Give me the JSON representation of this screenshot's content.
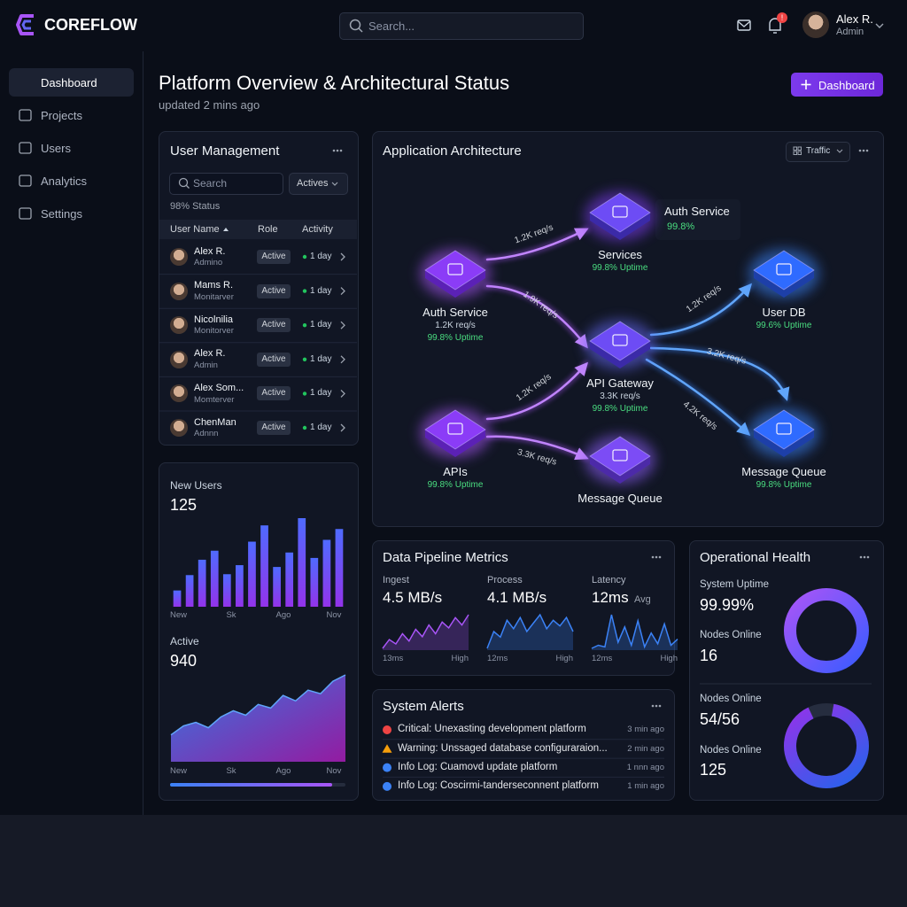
{
  "header": {
    "brand": "COREFLOW",
    "search_placeholder": "Search...",
    "notification_badge": "!",
    "user": {
      "name": "Alex R.",
      "role": "Admin"
    }
  },
  "sidebar": {
    "items": [
      "Dashboard",
      "Projects",
      "Users",
      "Analytics",
      "Settings"
    ],
    "active": 0
  },
  "page": {
    "title": "Platform Overview & Architectural Status",
    "subtitle": "updated 2 mins ago",
    "action": "Dashboard"
  },
  "user_management": {
    "title": "User Management",
    "search_placeholder": "Search",
    "filter": "Actives",
    "status": "98% Status",
    "columns": [
      "User Name",
      "Role",
      "Activity"
    ],
    "rows": [
      {
        "name": "Alex R.",
        "role": "Admino",
        "status": "Active",
        "activity": "1 day"
      },
      {
        "name": "Mams R.",
        "role": "Monitarver",
        "status": "Active",
        "activity": "1 day"
      },
      {
        "name": "Nicolnilia",
        "role": "Monitorver",
        "status": "Active",
        "activity": "1 day"
      },
      {
        "name": "Alex R.",
        "role": "Admin",
        "status": "Active",
        "activity": "1 day"
      },
      {
        "name": "Alex Som...",
        "role": "Momterver",
        "status": "Active",
        "activity": "1 day"
      },
      {
        "name": "ChenMan",
        "role": "Adnnn",
        "status": "Active",
        "activity": "1 day"
      }
    ]
  },
  "user_stats": {
    "new_users": {
      "label": "New Users",
      "value": "125",
      "chart": {
        "type": "bar",
        "values": [
          18,
          35,
          52,
          62,
          36,
          46,
          72,
          90,
          44,
          60,
          98,
          54,
          74,
          86
        ],
        "x_labels": [
          "New",
          "Sk",
          "Ago",
          "Nov"
        ]
      }
    },
    "active": {
      "label": "Active",
      "value": "940",
      "chart": {
        "type": "area",
        "values": [
          30,
          40,
          44,
          38,
          50,
          57,
          52,
          64,
          60,
          74,
          68,
          80,
          76,
          90,
          97
        ],
        "x_labels": [
          "New",
          "Sk",
          "Ago",
          "Nov"
        ]
      }
    }
  },
  "architecture": {
    "title": "Application Architecture",
    "control": "Traffic",
    "nodes": [
      {
        "label": "Auth Service",
        "metrics": [
          "1.2K req/s",
          "99.8% Uptime"
        ]
      },
      {
        "label": "Services",
        "metrics": [
          "99.8% Uptime"
        ]
      },
      {
        "label": "Auth Service",
        "metrics": [
          "99.8%"
        ]
      },
      {
        "label": "User DB",
        "metrics": [
          "99.6% Uptime"
        ]
      },
      {
        "label": "API Gateway",
        "metrics": [
          "3.3K req/s",
          "99.8% Uptime"
        ]
      },
      {
        "label": "APIs",
        "metrics": [
          "99.8% Uptime"
        ]
      },
      {
        "label": "Message Queue",
        "metrics": []
      },
      {
        "label": "Message Queue",
        "metrics": [
          "99.8% Uptime"
        ]
      }
    ],
    "edges": [
      {
        "label": "1.2K req/s"
      },
      {
        "label": "1.9K req/s"
      },
      {
        "label": "1.2K req/s"
      },
      {
        "label": "3.2K req/s"
      },
      {
        "label": "4.2K req/s"
      },
      {
        "label": "1.2K req/s"
      },
      {
        "label": "3.3K req/s"
      }
    ]
  },
  "pipeline": {
    "title": "Data Pipeline Metrics",
    "metrics": [
      {
        "label": "Ingest",
        "value": "4.5 MB/s",
        "min_label": "13ms",
        "max_label": "High",
        "sparkline": [
          12,
          18,
          15,
          22,
          17,
          25,
          20,
          28,
          22,
          30,
          26,
          33,
          28,
          35
        ]
      },
      {
        "label": "Process",
        "value": "4.1 MB/s",
        "min_label": "12ms",
        "max_label": "High",
        "sparkline": [
          20,
          26,
          24,
          30,
          27,
          31,
          26,
          29,
          32,
          27,
          30,
          28,
          31,
          26
        ]
      },
      {
        "label": "Latency",
        "value": "12ms",
        "unit": "Avg",
        "min_label": "12ms",
        "max_label": "High",
        "sparkline": [
          8,
          10,
          9,
          30,
          12,
          22,
          10,
          26,
          9,
          18,
          11,
          24,
          10,
          14
        ]
      }
    ]
  },
  "alerts": {
    "title": "System Alerts",
    "items": [
      {
        "level": "critical",
        "text": "Critical: Unexasting development platform",
        "time": "3 min ago"
      },
      {
        "level": "warning",
        "text": "Warning: Unssaged database configuraraion...",
        "time": "2 min ago"
      },
      {
        "level": "info",
        "text": "Info Log: Cuamovd update platform",
        "time": "1 nnn ago"
      },
      {
        "level": "info",
        "text": "Info Log: Coscirmi-tanderseconnent platform",
        "time": "1 min ago"
      }
    ]
  },
  "health": {
    "title": "Operational Health",
    "stats": [
      {
        "label": "System Uptime",
        "value": "99.99%"
      },
      {
        "label": "Nodes Online",
        "value": "16"
      },
      {
        "label": "Nodes Online",
        "value": "54/56"
      },
      {
        "label": "Nodes Online",
        "value": "125"
      }
    ]
  }
}
